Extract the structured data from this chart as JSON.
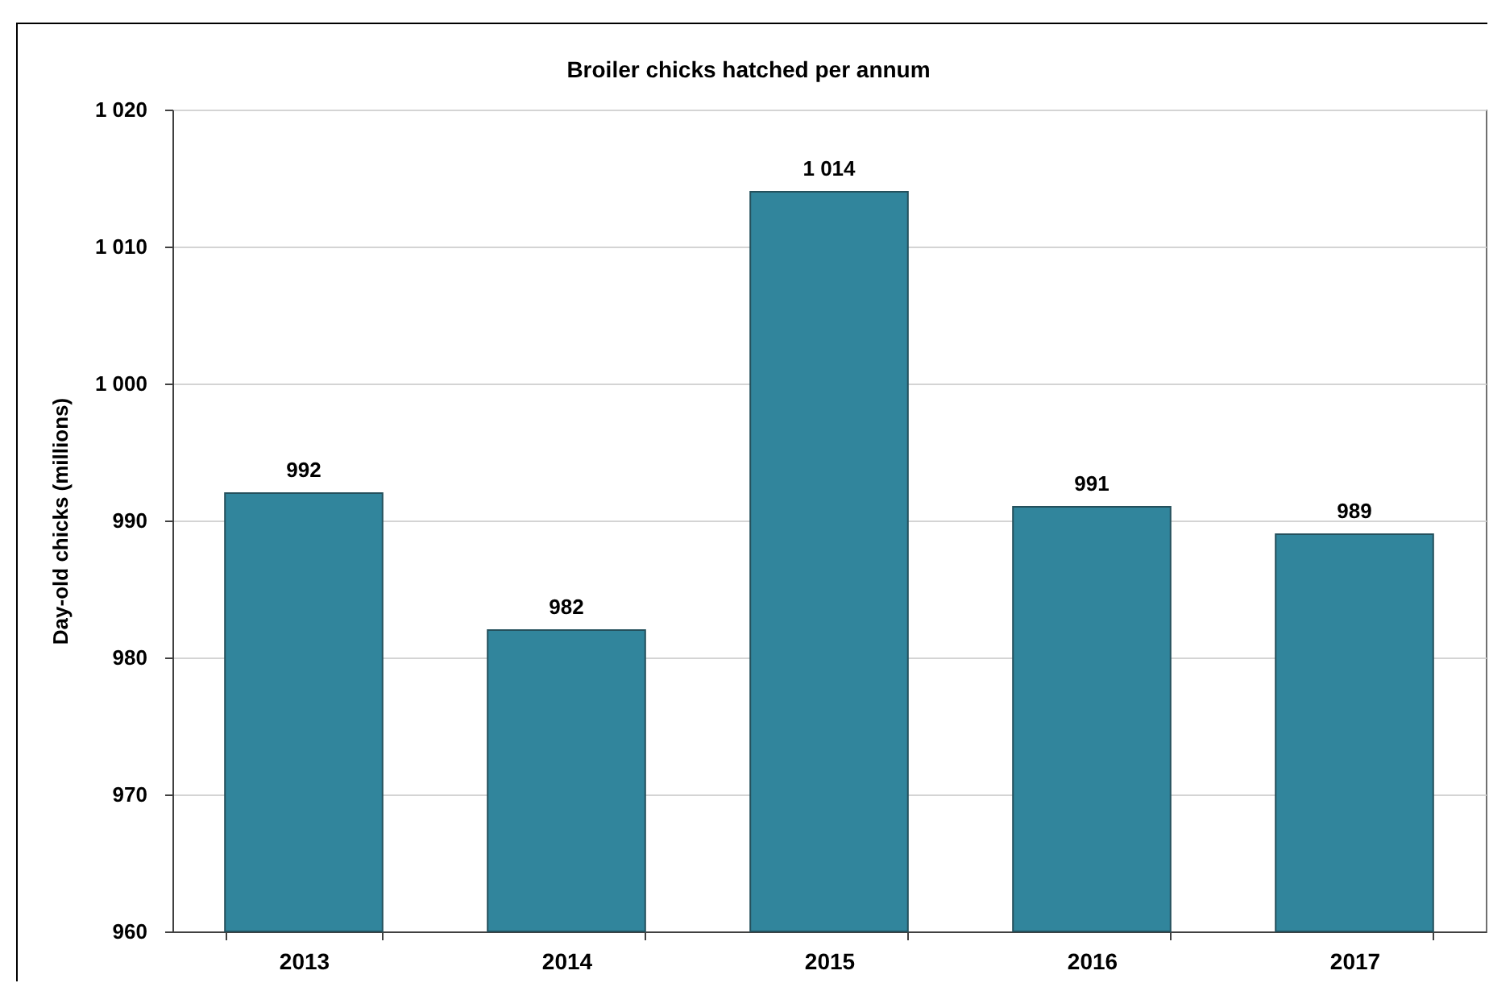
{
  "chart_data": {
    "type": "bar",
    "title": "Broiler chicks hatched per annum",
    "ylabel": "Day-old chicks (millions)",
    "categories": [
      "2013",
      "2014",
      "2015",
      "2016",
      "2017"
    ],
    "values": [
      992,
      982,
      1014,
      991,
      989
    ],
    "value_labels": [
      "992",
      "982",
      "1 014",
      "991",
      "989"
    ],
    "color": "#31859c",
    "ylim": [
      960,
      1020
    ],
    "yticks": [
      960,
      970,
      980,
      990,
      {
        "value": 1000,
        "label": "1 000"
      },
      {
        "value": 1010,
        "label": "1 010"
      },
      {
        "value": 1020,
        "label": "1 020"
      }
    ],
    "grid": "y"
  }
}
